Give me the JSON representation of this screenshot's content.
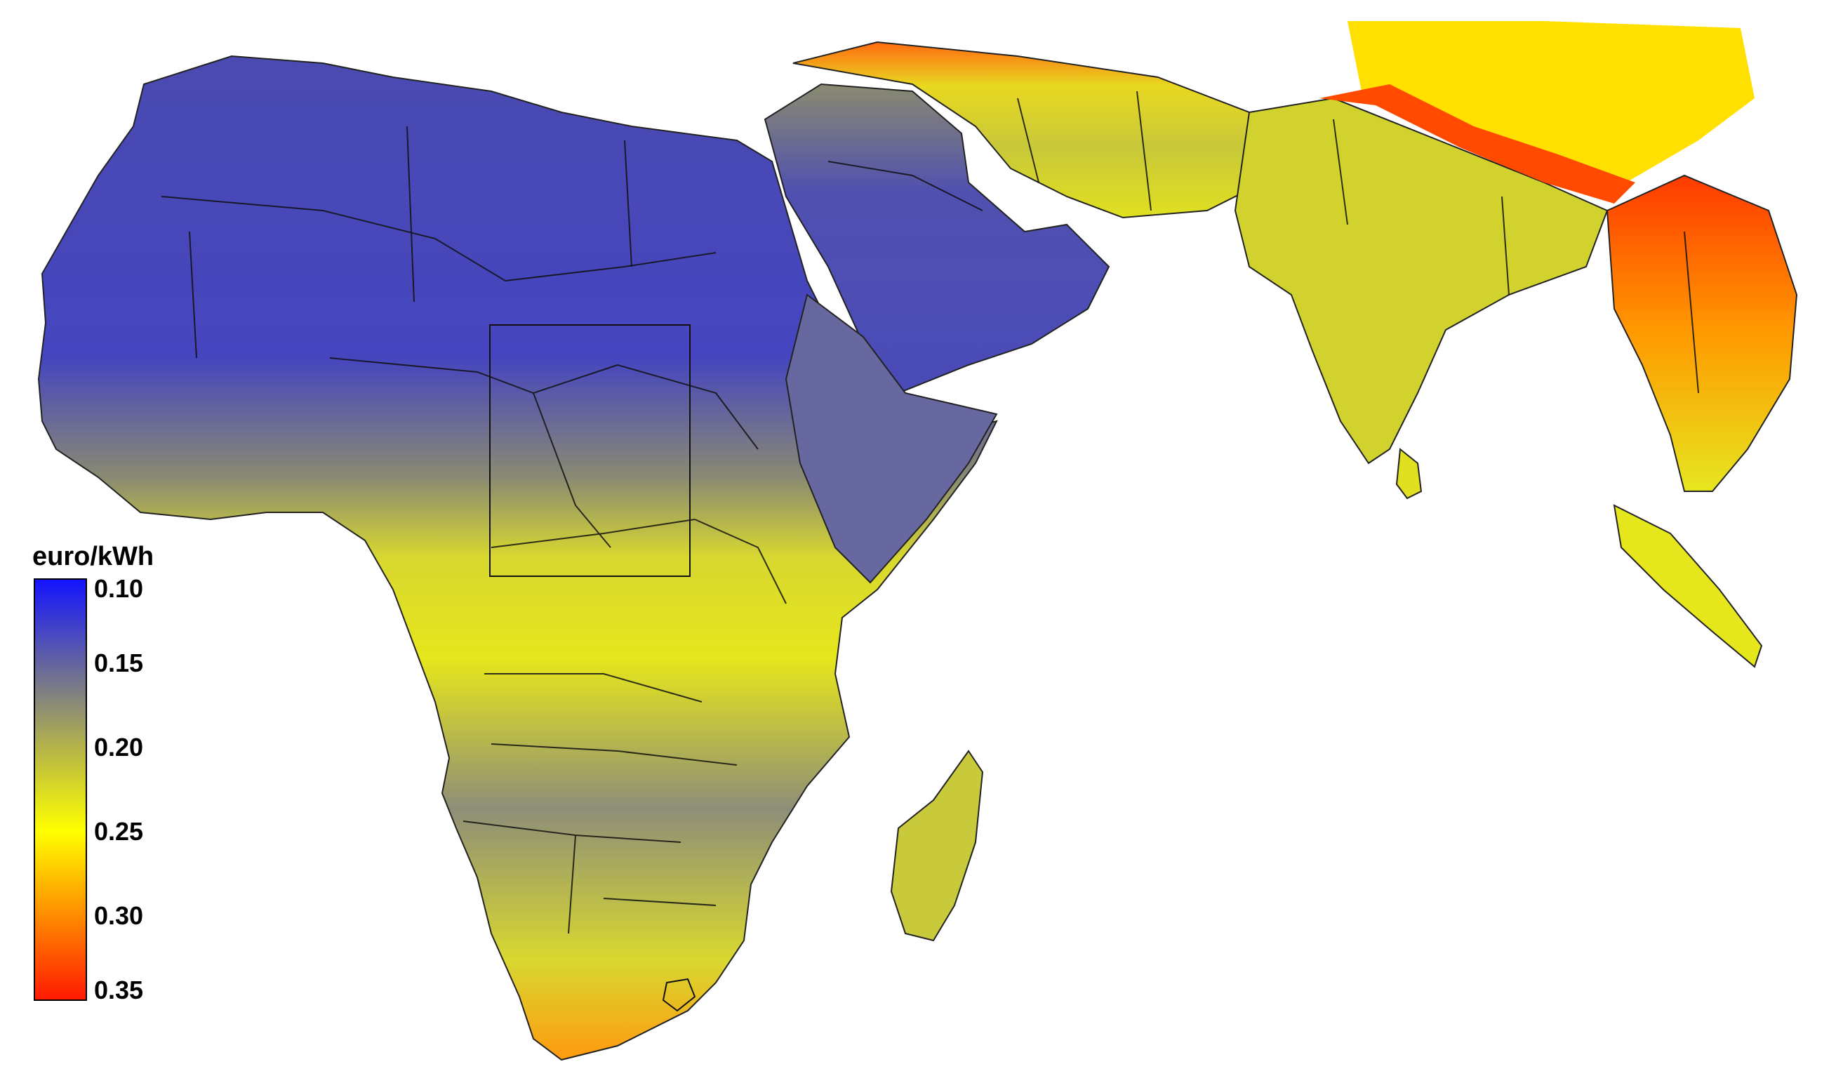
{
  "legend": {
    "title": "euro/kWh",
    "ticks": [
      "0.10",
      "0.15",
      "0.20",
      "0.25",
      "0.30",
      "0.35"
    ],
    "colors": {
      "low": "#1a1aff",
      "mid_low": "#6a6a96",
      "mid": "#b4b44a",
      "mid_high": "#ffff00",
      "high": "#ff8c00",
      "max": "#ff2000"
    }
  },
  "map": {
    "region": "Africa, Middle East and South Asia",
    "features": [
      "country-borders",
      "study-area-rectangle"
    ]
  }
}
